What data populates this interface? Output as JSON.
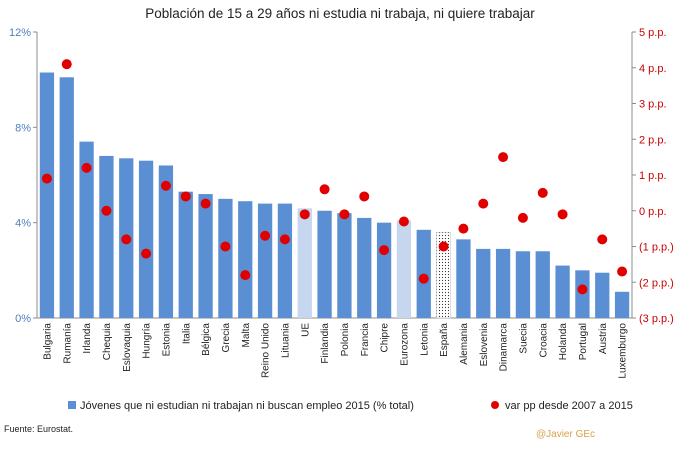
{
  "chart_data": {
    "type": "bar",
    "title": "Población de 15 a 29 años ni estudia ni trabaja, ni quiere trabajar",
    "categories": [
      "Bulgaria",
      "Rumanía",
      "Irlanda",
      "Chequia",
      "Eslovaquia",
      "Hungría",
      "Estonia",
      "Italia",
      "Bélgica",
      "Grecia",
      "Malta",
      "Reino Unido",
      "Lituania",
      "UE",
      "Finlandia",
      "Polonia",
      "Francia",
      "Chipre",
      "Eurozona",
      "Letonia",
      "España",
      "Alemania",
      "Eslovenia",
      "Dinamarca",
      "Suecia",
      "Croacia",
      "Holanda",
      "Portugal",
      "Austria",
      "Luxemburgo"
    ],
    "series": [
      {
        "name": "Jóvenes que ni estudian ni trabajan ni buscan empleo 2015 (% total)",
        "axis": "left",
        "kind": "bar",
        "values": [
          10.3,
          10.1,
          7.4,
          6.8,
          6.7,
          6.6,
          6.4,
          5.3,
          5.2,
          5.0,
          4.9,
          4.8,
          4.8,
          4.6,
          4.5,
          4.4,
          4.2,
          4.0,
          4.1,
          3.7,
          3.6,
          3.3,
          2.9,
          2.9,
          2.8,
          2.8,
          2.2,
          2.0,
          1.9,
          1.1
        ],
        "color": "#5b8fd4",
        "highlight": {
          "UE": "#c5d6ee",
          "Eurozona": "#c5d6ee",
          "España": "dotted"
        }
      },
      {
        "name": "var pp desde 2007 a 2015",
        "axis": "right",
        "kind": "dot",
        "values": [
          0.9,
          4.1,
          1.2,
          0.0,
          -0.8,
          -1.2,
          0.7,
          0.4,
          0.2,
          -1.0,
          -1.8,
          -0.7,
          -0.8,
          -0.1,
          0.6,
          -0.1,
          0.4,
          -1.1,
          -0.3,
          -1.9,
          -1.0,
          -0.5,
          0.2,
          1.5,
          -0.2,
          0.5,
          -0.1,
          -2.2,
          -0.8,
          -1.7
        ],
        "color": "#e00000"
      }
    ],
    "y_left": {
      "min": 0,
      "max": 12,
      "ticks": [
        0,
        4,
        8,
        12
      ],
      "tick_labels": [
        "0%",
        "4%",
        "8%",
        "12%"
      ]
    },
    "y_right": {
      "min": -3,
      "max": 5,
      "ticks": [
        5,
        4,
        3,
        2,
        1,
        0,
        -1,
        -2,
        -3
      ],
      "tick_labels": [
        "5 p.p.",
        "4 p.p.",
        "3 p.p.",
        "2 p.p.",
        "1 p.p.",
        "0 p.p.",
        "(1 p.p.)",
        "(2 p.p.)",
        "(3 p.p.)"
      ]
    },
    "legend_position": "bottom",
    "grid": false
  },
  "source": "Fuente: Eurostat.",
  "credit": "@Javier GEc"
}
